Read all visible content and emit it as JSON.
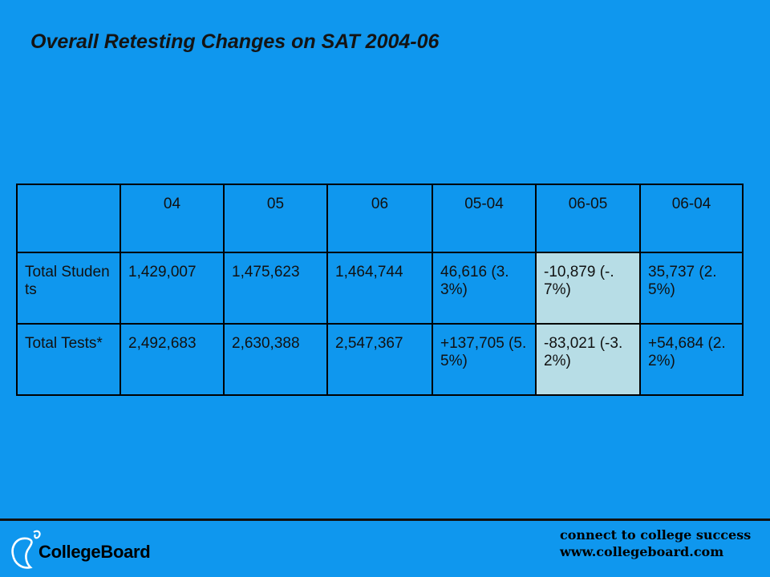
{
  "slide": {
    "title": "Overall Retesting Changes on SAT 2004-06"
  },
  "table": {
    "corner": "",
    "columns": [
      "04",
      "05",
      "06",
      "05-04",
      "06-05",
      "06-04"
    ],
    "rows": [
      {
        "label": "Total Students",
        "values": [
          "1,429,007",
          "1,475,623",
          "1,464,744",
          "46,616 (3.3%)",
          "-10,879 (-.7%)",
          "35,737 (2.5%)"
        ]
      },
      {
        "label": "Total Tests*",
        "values": [
          "2,492,683",
          "2,630,388",
          "2,547,367",
          "+137,705 (5.5%)",
          "-83,021 (-3.2%)",
          "+54,684 (2.2%)"
        ]
      }
    ],
    "highlight_color": "#b7dde6",
    "highlighted_column": "06-05"
  },
  "footer": {
    "logo_text": "CollegeBoard",
    "tagline_line1": "connect to college success",
    "tagline_line2": "www.collegeboard.com"
  },
  "colors": {
    "background": "#0f97ee",
    "text": "#111111"
  }
}
